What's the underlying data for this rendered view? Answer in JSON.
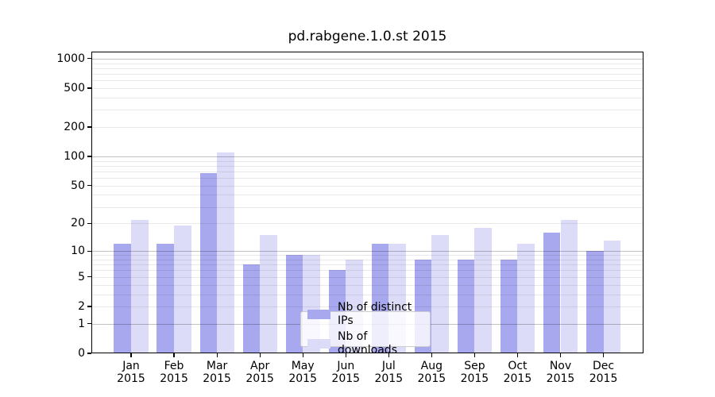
{
  "title": "pd.rabgene.1.0.st 2015",
  "chart_data": {
    "type": "bar",
    "title": "pd.rabgene.1.0.st 2015",
    "categories": [
      "Jan",
      "Feb",
      "Mar",
      "Apr",
      "May",
      "Jun",
      "Jul",
      "Aug",
      "Sep",
      "Oct",
      "Nov",
      "Dec"
    ],
    "year_label": "2015",
    "series": [
      {
        "name": "Nb of distinct IPs",
        "color": "#a8a8ee",
        "values": [
          12,
          12,
          67,
          7,
          9,
          6,
          12,
          8,
          8,
          8,
          16,
          10
        ]
      },
      {
        "name": "Nb of downloads",
        "color": "#dcdcf8",
        "values": [
          22,
          19,
          110,
          15,
          9,
          8,
          12,
          15,
          18,
          12,
          22,
          13
        ]
      }
    ],
    "yticks": [
      0,
      1,
      2,
      5,
      10,
      20,
      50,
      100,
      200,
      500,
      1000
    ],
    "yscale": "log10(value+1)",
    "ylim": [
      0,
      1150
    ],
    "xlabel": "",
    "ylabel": "",
    "grid": true,
    "grid_over_bars": true,
    "legend_position": "lower-center",
    "background_color": "#ffffff"
  }
}
